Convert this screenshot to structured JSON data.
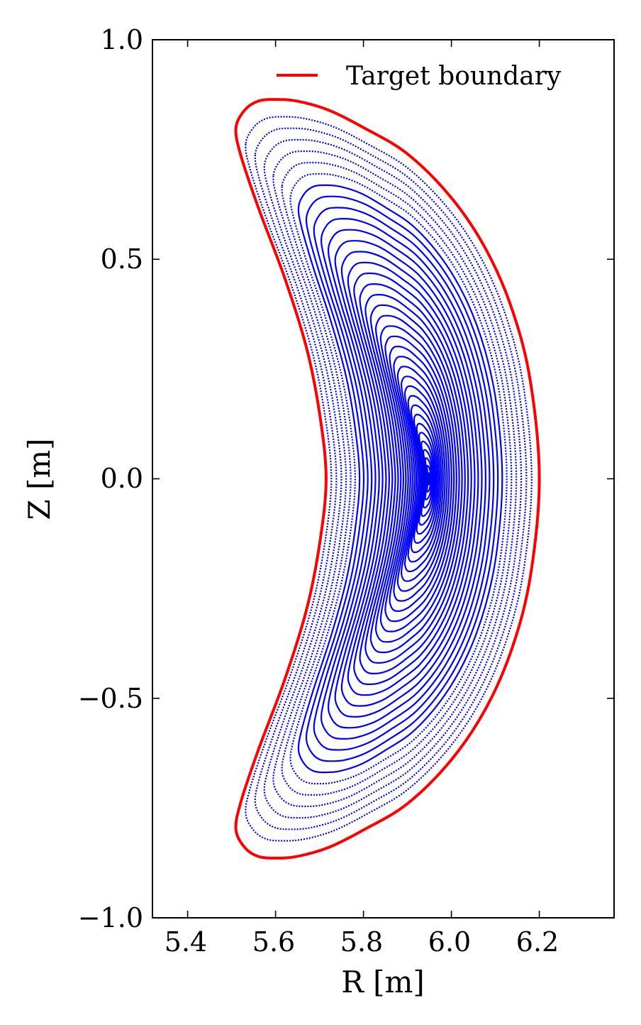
{
  "chart_data": {
    "type": "line",
    "title": "",
    "xlabel": "R [m]",
    "ylabel": "Z [m]",
    "xlim": [
      5.32,
      6.37
    ],
    "ylim": [
      -1.0,
      1.0
    ],
    "xticks": [
      5.4,
      5.6,
      5.8,
      6.0,
      6.2
    ],
    "xtick_labels": [
      "5.4",
      "5.6",
      "5.8",
      "6.0",
      "6.2"
    ],
    "yticks": [
      1.0,
      0.5,
      0.0,
      -0.5,
      -1.0
    ],
    "ytick_labels": [
      "1.0",
      "0.5",
      "0.0",
      "−0.5",
      "−1.0"
    ],
    "grid": false,
    "legend": {
      "placement": "top-right",
      "entries": [
        {
          "label": "Target boundary",
          "color": "#ff0000"
        }
      ]
    },
    "series": [
      {
        "name": "Target boundary",
        "color": "#ff0000",
        "style": "solid",
        "boundary_points": [
          [
            5.51,
            0.8
          ],
          [
            5.53,
            0.84
          ],
          [
            5.56,
            0.86
          ],
          [
            5.6,
            0.864
          ],
          [
            5.65,
            0.86
          ],
          [
            5.72,
            0.84
          ],
          [
            5.8,
            0.8
          ],
          [
            5.9,
            0.74
          ],
          [
            6.0,
            0.64
          ],
          [
            6.08,
            0.52
          ],
          [
            6.14,
            0.38
          ],
          [
            6.18,
            0.22
          ],
          [
            6.2,
            0.0
          ],
          [
            6.18,
            -0.22
          ],
          [
            6.14,
            -0.38
          ],
          [
            6.08,
            -0.52
          ],
          [
            6.0,
            -0.64
          ],
          [
            5.9,
            -0.74
          ],
          [
            5.8,
            -0.8
          ],
          [
            5.72,
            -0.84
          ],
          [
            5.65,
            -0.86
          ],
          [
            5.6,
            -0.864
          ],
          [
            5.56,
            -0.86
          ],
          [
            5.53,
            -0.84
          ],
          [
            5.51,
            -0.8
          ],
          [
            5.52,
            -0.74
          ],
          [
            5.56,
            -0.62
          ],
          [
            5.62,
            -0.46
          ],
          [
            5.67,
            -0.3
          ],
          [
            5.7,
            -0.15
          ],
          [
            5.715,
            0.0
          ],
          [
            5.7,
            0.15
          ],
          [
            5.67,
            0.3
          ],
          [
            5.62,
            0.46
          ],
          [
            5.56,
            0.62
          ],
          [
            5.52,
            0.74
          ]
        ]
      },
      {
        "color": "#0000ff",
        "style": "nested flux surfaces",
        "magnetic_axis": [
          5.95,
          0.0
        ],
        "surface_count": 36
      }
    ]
  }
}
